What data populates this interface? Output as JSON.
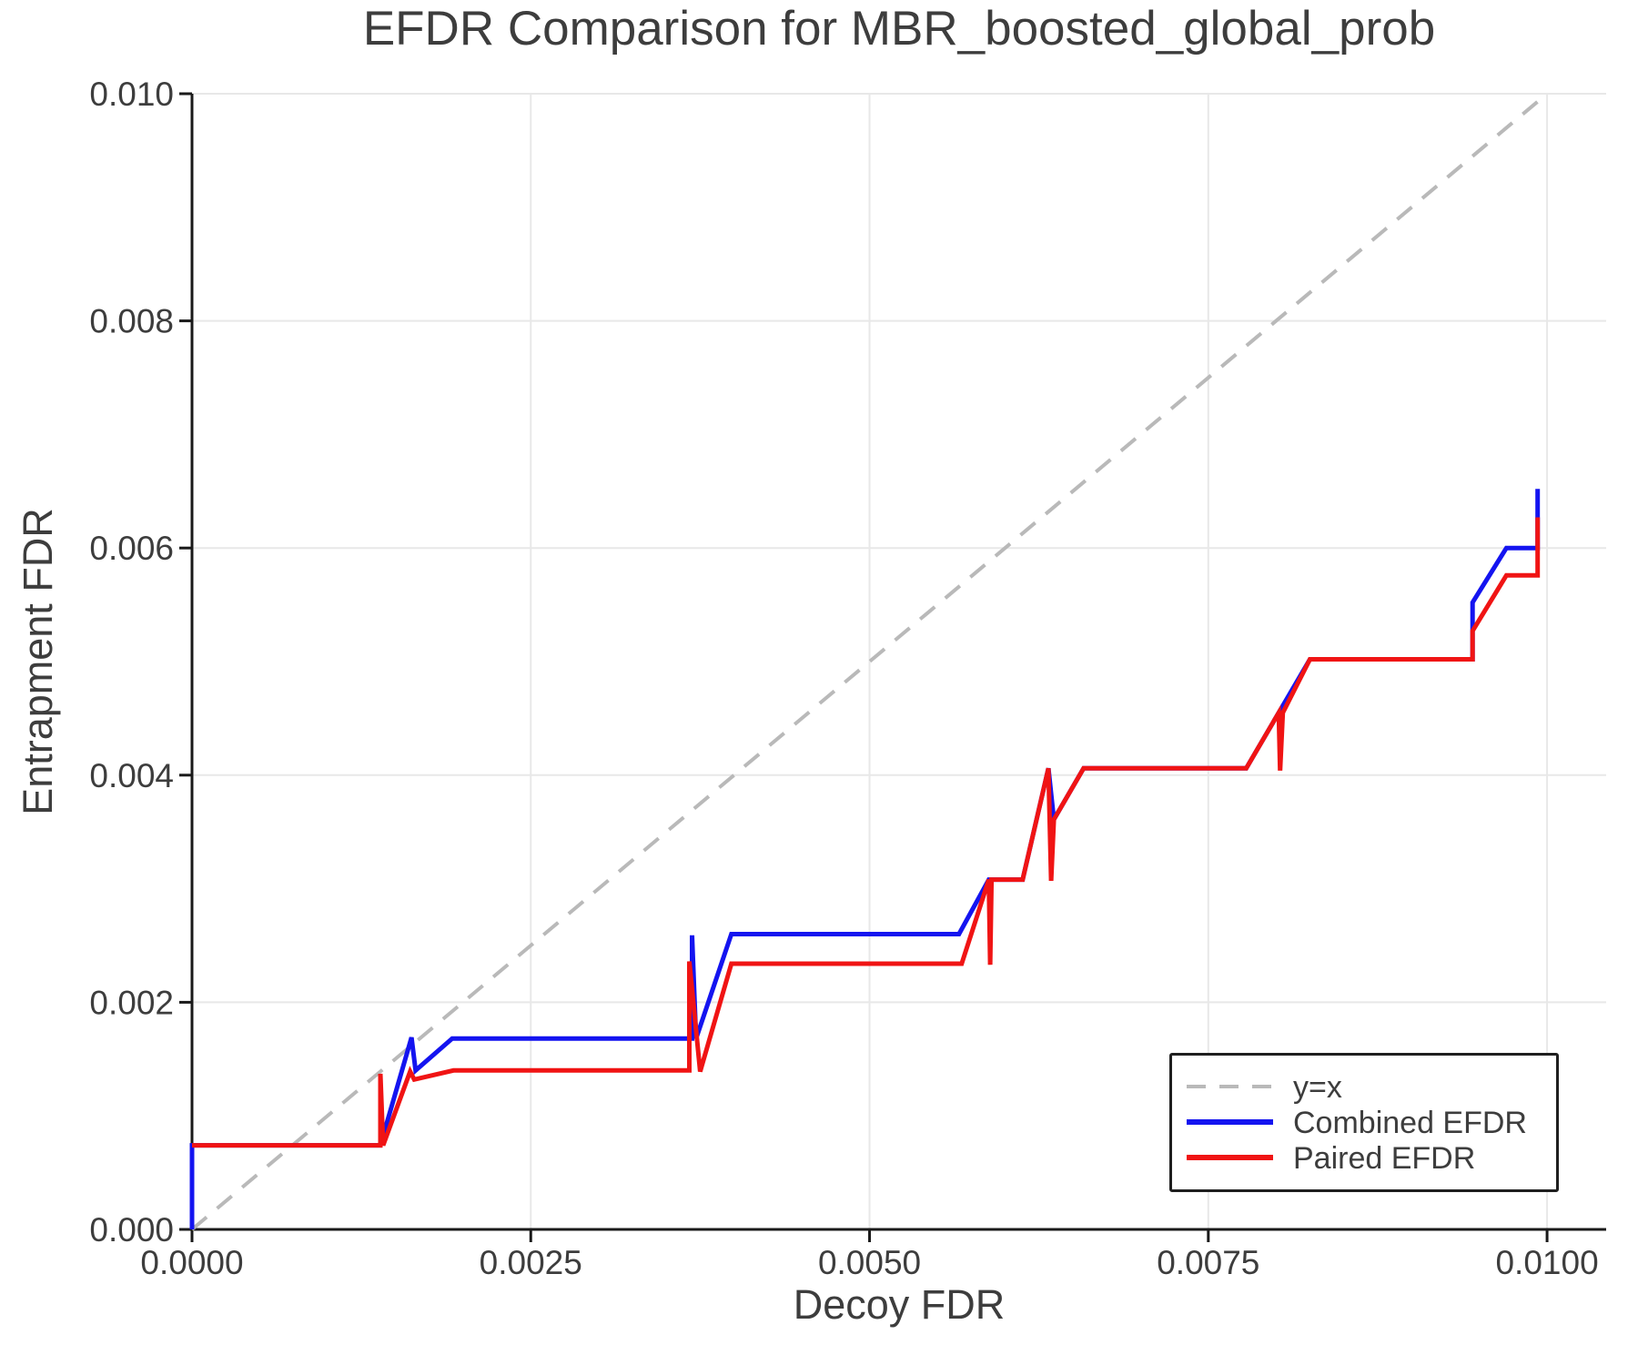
{
  "chart_data": {
    "type": "line",
    "title": "EFDR Comparison for MBR_boosted_global_prob",
    "xlabel": "Decoy FDR",
    "ylabel": "Entrapment FDR",
    "xlim": [
      0,
      0.010436
    ],
    "ylim": [
      0,
      0.01
    ],
    "grid": true,
    "legend_position": "lower right",
    "xticks": {
      "values": [
        0,
        0.0025,
        0.005,
        0.0075,
        0.01
      ],
      "labels": [
        "0.0000",
        "0.0025",
        "0.0050",
        "0.0075",
        "0.0100"
      ]
    },
    "yticks": {
      "values": [
        0,
        0.002,
        0.004,
        0.006,
        0.008,
        0.01
      ],
      "labels": [
        "0.000",
        "0.002",
        "0.004",
        "0.006",
        "0.008",
        "0.010"
      ]
    },
    "series": [
      {
        "name": "y=x",
        "color": "#b9b9b9",
        "style": "dashed",
        "width": 4,
        "points": [
          [
            0,
            0
          ],
          [
            0.01,
            0.01
          ]
        ]
      },
      {
        "name": "Combined EFDR",
        "color": "#1414f0",
        "style": "solid",
        "width": 5,
        "points": [
          [
            0.0,
            0.0
          ],
          [
            0.0,
            0.00074
          ],
          [
            0.00139,
            0.00074
          ],
          [
            0.00162,
            0.00169
          ],
          [
            0.00165,
            0.0014
          ],
          [
            0.00192,
            0.00168
          ],
          [
            0.00369,
            0.00168
          ],
          [
            0.00369,
            0.00259
          ],
          [
            0.00372,
            0.00168
          ],
          [
            0.00398,
            0.0026
          ],
          [
            0.00566,
            0.0026
          ],
          [
            0.00588,
            0.00308
          ],
          [
            0.00613,
            0.00308
          ],
          [
            0.00632,
            0.00406
          ],
          [
            0.00636,
            0.00361
          ],
          [
            0.00658,
            0.00406
          ],
          [
            0.00778,
            0.00406
          ],
          [
            0.00825,
            0.00502
          ],
          [
            0.00945,
            0.00502
          ],
          [
            0.00945,
            0.00552
          ],
          [
            0.0097,
            0.006
          ],
          [
            0.00993,
            0.006
          ],
          [
            0.00993,
            0.00652
          ]
        ]
      },
      {
        "name": "Paired EFDR",
        "color": "#f01414",
        "style": "solid",
        "width": 5,
        "points": [
          [
            0.0,
            0.00074
          ],
          [
            0.00139,
            0.00074
          ],
          [
            0.00139,
            0.00137
          ],
          [
            0.00141,
            0.00074
          ],
          [
            0.00161,
            0.00139
          ],
          [
            0.00164,
            0.00132
          ],
          [
            0.00193,
            0.0014
          ],
          [
            0.00367,
            0.0014
          ],
          [
            0.00367,
            0.00236
          ],
          [
            0.00375,
            0.00139
          ],
          [
            0.00398,
            0.00234
          ],
          [
            0.00568,
            0.00234
          ],
          [
            0.00588,
            0.00308
          ],
          [
            0.00589,
            0.00233
          ],
          [
            0.0059,
            0.00308
          ],
          [
            0.00613,
            0.00308
          ],
          [
            0.00632,
            0.00406
          ],
          [
            0.00634,
            0.00307
          ],
          [
            0.00636,
            0.00361
          ],
          [
            0.00658,
            0.00406
          ],
          [
            0.00778,
            0.00406
          ],
          [
            0.00802,
            0.00455
          ],
          [
            0.00803,
            0.00404
          ],
          [
            0.00805,
            0.00455
          ],
          [
            0.00825,
            0.00502
          ],
          [
            0.00945,
            0.00502
          ],
          [
            0.00945,
            0.00527
          ],
          [
            0.0097,
            0.00576
          ],
          [
            0.00993,
            0.00576
          ],
          [
            0.00993,
            0.00627
          ]
        ]
      }
    ]
  },
  "colors": {
    "background": "#ffffff",
    "text": "#3d3d3d",
    "axis": "#1a1a1a",
    "grid": "#e8e8e8"
  }
}
